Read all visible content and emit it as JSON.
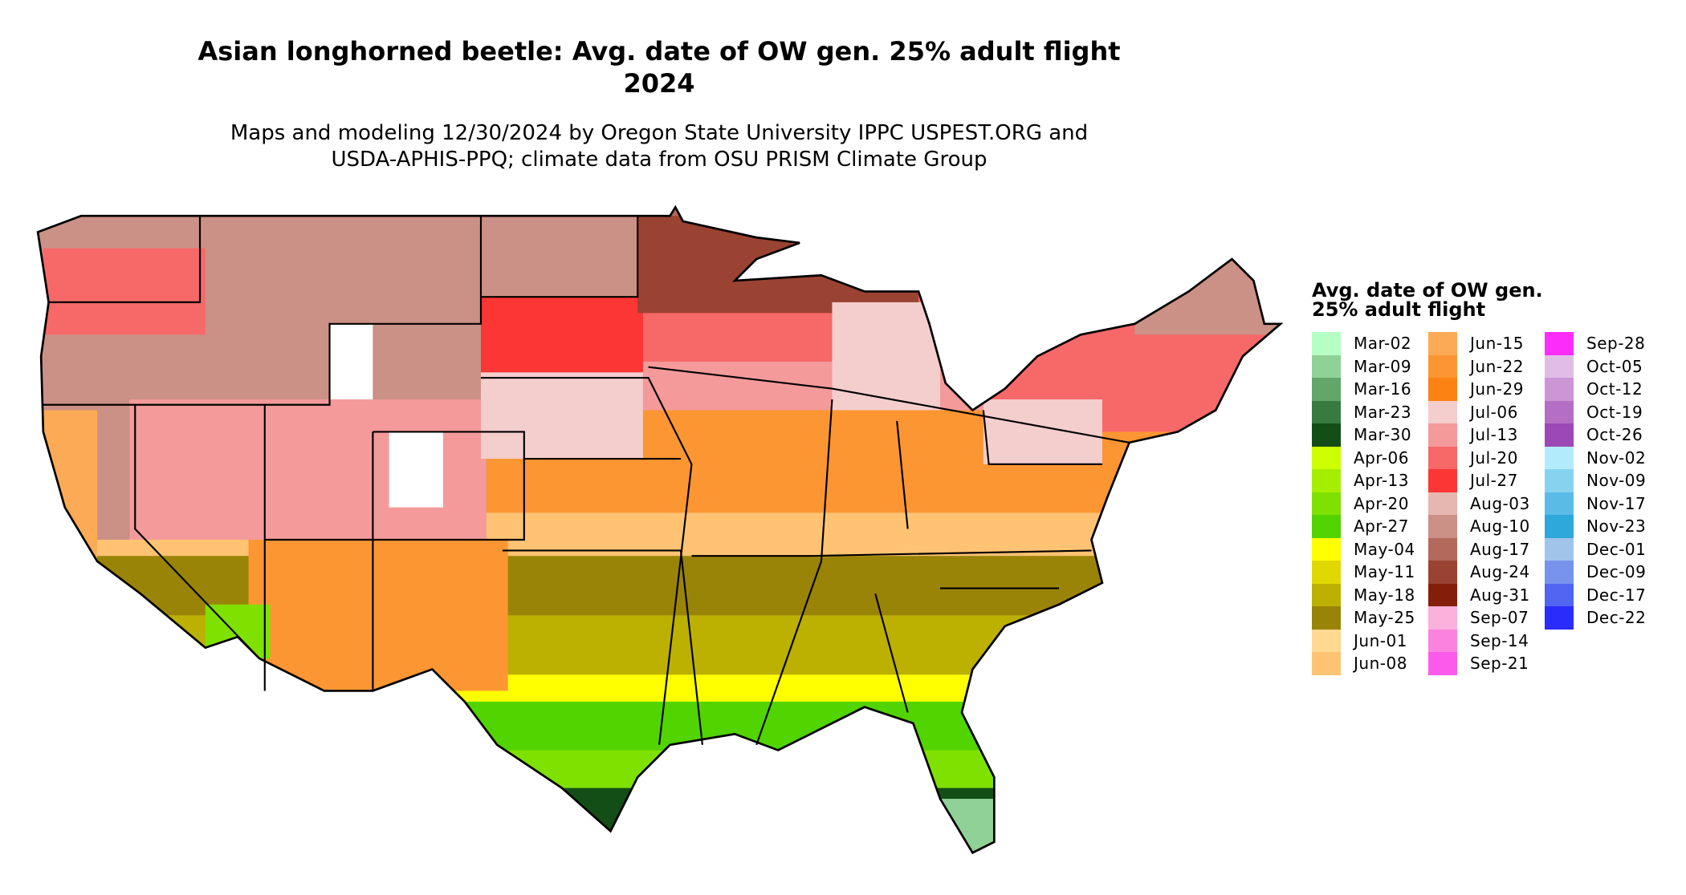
{
  "title": {
    "line1": "Asian longhorned beetle: Avg. date of OW gen. 25% adult flight",
    "line2": "2024"
  },
  "subtitle": {
    "line1": "Maps and modeling 12/30/2024 by Oregon State University IPPC USPEST.ORG and",
    "line2": "USDA-APHIS-PPQ; climate data from OSU PRISM Climate Group"
  },
  "legend": {
    "title": "Avg. date of OW gen. 25% adult flight",
    "columns": [
      [
        {
          "label": "Mar-02",
          "color": "#b5ffc5"
        },
        {
          "label": "Mar-09",
          "color": "#8fd196"
        },
        {
          "label": "Mar-16",
          "color": "#62a66a"
        },
        {
          "label": "Mar-23",
          "color": "#387a3f"
        },
        {
          "label": "Mar-30",
          "color": "#144e17"
        },
        {
          "label": "Apr-06",
          "color": "#ccff00"
        },
        {
          "label": "Apr-13",
          "color": "#a6ee00"
        },
        {
          "label": "Apr-20",
          "color": "#7fe100"
        },
        {
          "label": "Apr-27",
          "color": "#52d400"
        },
        {
          "label": "May-04",
          "color": "#ffff00"
        },
        {
          "label": "May-11",
          "color": "#e0d800"
        },
        {
          "label": "May-18",
          "color": "#bcb000"
        },
        {
          "label": "May-25",
          "color": "#9a8407"
        },
        {
          "label": "Jun-01",
          "color": "#ffd892"
        },
        {
          "label": "Jun-08",
          "color": "#ffc373"
        }
      ],
      [
        {
          "label": "Jun-15",
          "color": "#fcaa55"
        },
        {
          "label": "Jun-22",
          "color": "#fc9632"
        },
        {
          "label": "Jun-29",
          "color": "#fc8214"
        },
        {
          "label": "Jul-06",
          "color": "#f4cdcd"
        },
        {
          "label": "Jul-13",
          "color": "#f49a9a"
        },
        {
          "label": "Jul-20",
          "color": "#f76868"
        },
        {
          "label": "Jul-27",
          "color": "#fc3535"
        },
        {
          "label": "Aug-03",
          "color": "#e6b7b0"
        },
        {
          "label": "Aug-10",
          "color": "#cb9086"
        },
        {
          "label": "Aug-17",
          "color": "#b3695c"
        },
        {
          "label": "Aug-24",
          "color": "#9a4332"
        },
        {
          "label": "Aug-31",
          "color": "#841e0b"
        },
        {
          "label": "Sep-07",
          "color": "#fcb0dc"
        },
        {
          "label": "Sep-14",
          "color": "#fc82e0"
        },
        {
          "label": "Sep-21",
          "color": "#fc5aeb"
        }
      ],
      [
        {
          "label": "Sep-28",
          "color": "#fc2df8"
        },
        {
          "label": "Oct-05",
          "color": "#e0bde6"
        },
        {
          "label": "Oct-12",
          "color": "#cb95d6"
        },
        {
          "label": "Oct-19",
          "color": "#b46fc5"
        },
        {
          "label": "Oct-26",
          "color": "#9c48b6"
        },
        {
          "label": "Nov-02",
          "color": "#b2ecfc"
        },
        {
          "label": "Nov-09",
          "color": "#86d3f0"
        },
        {
          "label": "Nov-17",
          "color": "#5abce6"
        },
        {
          "label": "Nov-23",
          "color": "#2ea7da"
        },
        {
          "label": "Dec-01",
          "color": "#a0c4ea"
        },
        {
          "label": "Dec-09",
          "color": "#7893ec"
        },
        {
          "label": "Dec-17",
          "color": "#5065f2"
        },
        {
          "label": "Dec-22",
          "color": "#2a2cfc"
        }
      ]
    ]
  }
}
